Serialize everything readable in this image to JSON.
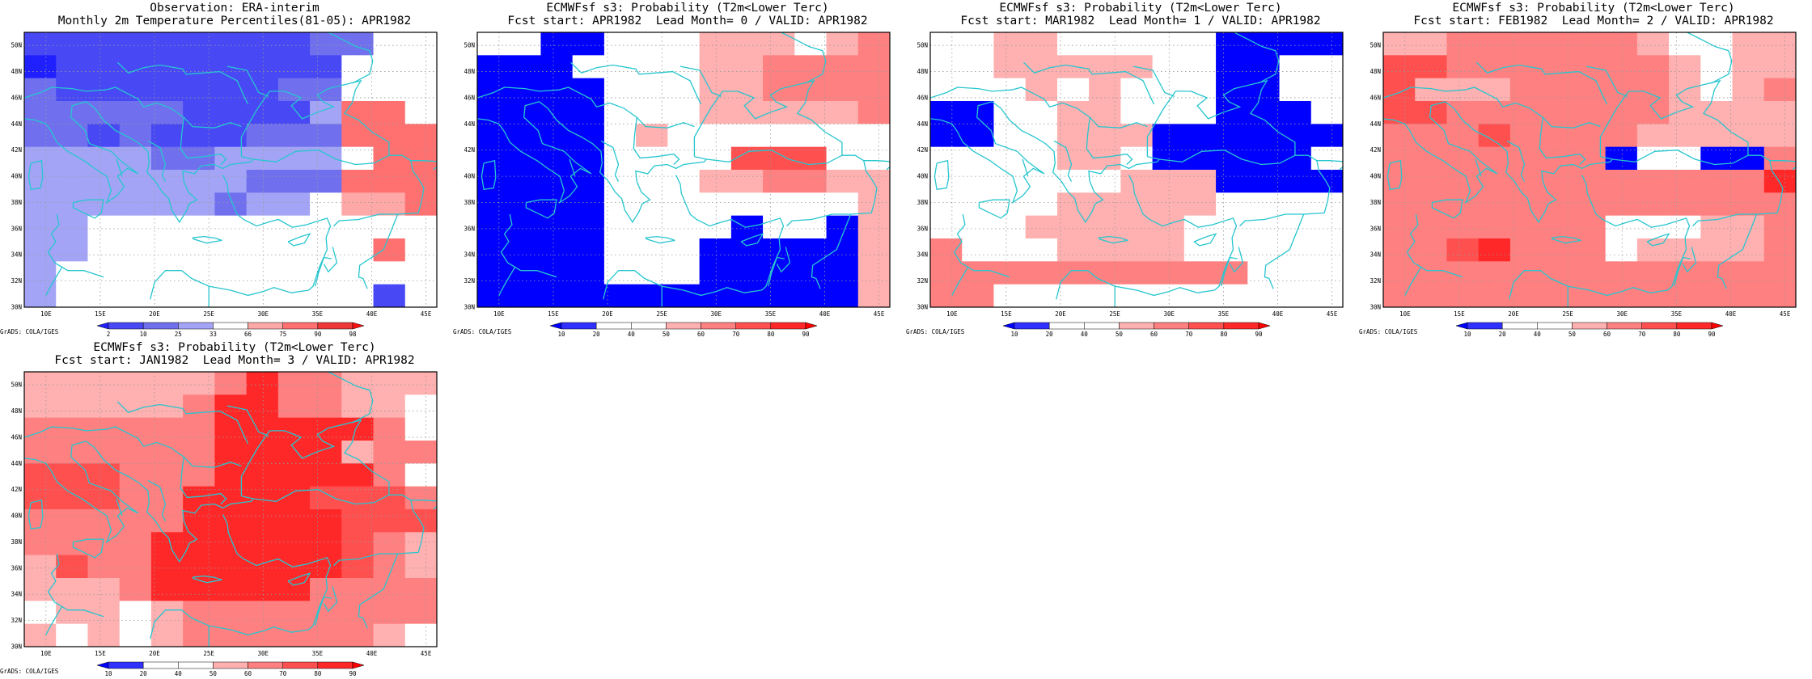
{
  "palettes": {
    "percentile": [
      "#2020ff",
      "#4848f4",
      "#7070ee",
      "#a4a4f6",
      "#ffffff",
      "#ffa8a8",
      "#ff7070",
      "#ee3838",
      "#ff1010"
    ],
    "probability": [
      "#0000ff",
      "#3030ff",
      "#ffffff",
      "#ffffff",
      "#ffb0b0",
      "#ff8080",
      "#ff5050",
      "#ff2828",
      "#ff0000"
    ]
  },
  "grid": {
    "lon_min": 8,
    "lon_max": 46,
    "lat_min": 30,
    "lat_max": 51,
    "cell_deg": 2.5
  },
  "axes": {
    "lon_labels": [
      "10E",
      "15E",
      "20E",
      "25E",
      "30E",
      "35E",
      "40E",
      "45E"
    ],
    "lat_labels": [
      "30N",
      "32N",
      "34N",
      "36N",
      "38N",
      "40N",
      "42N",
      "44N",
      "46N",
      "48N",
      "50N"
    ]
  },
  "panels": [
    {
      "title_line1": "Observation: ERA-interim",
      "title_line2": "Monthly 2m Temperature Percentiles(81-05): APR1982",
      "legend_type": "percentile",
      "legend_ticks": [
        "2",
        "10",
        "25",
        "33",
        "66",
        "75",
        "90",
        "98"
      ],
      "footer": "GrADS: COLA/IGES",
      "field": [
        "1111111112244",
        "0111111111444",
        "2111111122444",
        "2222211113664",
        "2212111222666",
        "3333223333466",
        "3333333222666",
        "3333332334556",
        "3344444444444",
        "3344444444464",
        "3444444444444",
        "3444444444414"
      ]
    },
    {
      "title_line1": "ECMWFsf s3: Probability (T2m<Lower Terc)",
      "title_line2": "Fcst start: APR1982  Lead Month= 0 / VALID: APR1982",
      "legend_type": "probability",
      "legend_ticks": [
        "10",
        "20",
        "40",
        "50",
        "60",
        "70",
        "80",
        "90"
      ],
      "footer": "GrADS: COLA/IGES",
      "field": [
        "2200222444245",
        "0002222445555",
        "0000222445555",
        "0000222444445",
        "0000242222222",
        "0000222266622",
        "0000222445544",
        "0000222222224",
        "0000232202204",
        "0000222000004",
        "0000222000004",
        "0000000000004"
      ]
    },
    {
      "title_line1": "ECMWFsf s3: Probability (T2m<Lower Terc)",
      "title_line2": "Fcst start: MAR1982  Lead Month= 1 / VALID: APR1982",
      "legend_type": "probability",
      "legend_ticks": [
        "10",
        "20",
        "40",
        "50",
        "60",
        "70",
        "80",
        "90"
      ],
      "footer": "GrADS: COLA/IGES",
      "field": [
        "2244222220000",
        "2244444220022",
        "2224242220022",
        "0022442220002",
        "0022444000000",
        "2222442000002",
        "2222224440000",
        "2222444442222",
        "2224444422222",
        "5222444422222",
        "5555555555222",
        "5522222222222"
      ]
    },
    {
      "title_line1": "ECMWFsf s3: Probability (T2m<Lower Terc)",
      "title_line2": "Fcst start: FEB1982  Lead Month= 2 / VALID: APR1982",
      "legend_type": "probability",
      "legend_ticks": [
        "10",
        "20",
        "40",
        "50",
        "60",
        "70",
        "80",
        "90"
      ],
      "footer": "GrADS: COLA/IGES",
      "field": [
        "4455555542244",
        "6655555554244",
        "6444555554245",
        "6655555554444",
        "5556555544444",
        "5555555022005",
        "5555555555557",
        "5555555555555",
        "5555555222445",
        "5567555244445",
        "5555555555555",
        "5555555555555"
      ]
    },
    {
      "title_line1": "ECMWFsf s3: Probability (T2m<Lower Terc)",
      "title_line2": "Fcst start: JAN1982  Lead Month= 3 / VALID: APR1982",
      "legend_type": "probability",
      "legend_ticks": [
        "10",
        "20",
        "40",
        "50",
        "60",
        "70",
        "80",
        "90"
      ],
      "footer": "GrADS: COLA/IGES",
      "field": [
        "4444445755444",
        "4444457755442",
        "5555557777752",
        "5555557777455",
        "6665557777752",
        "6665577776665",
        "5555577777666",
        "5555777777654",
        "4655777777654",
        "4445777775555",
        "2442455555555",
        "4242455555542"
      ]
    }
  ]
}
